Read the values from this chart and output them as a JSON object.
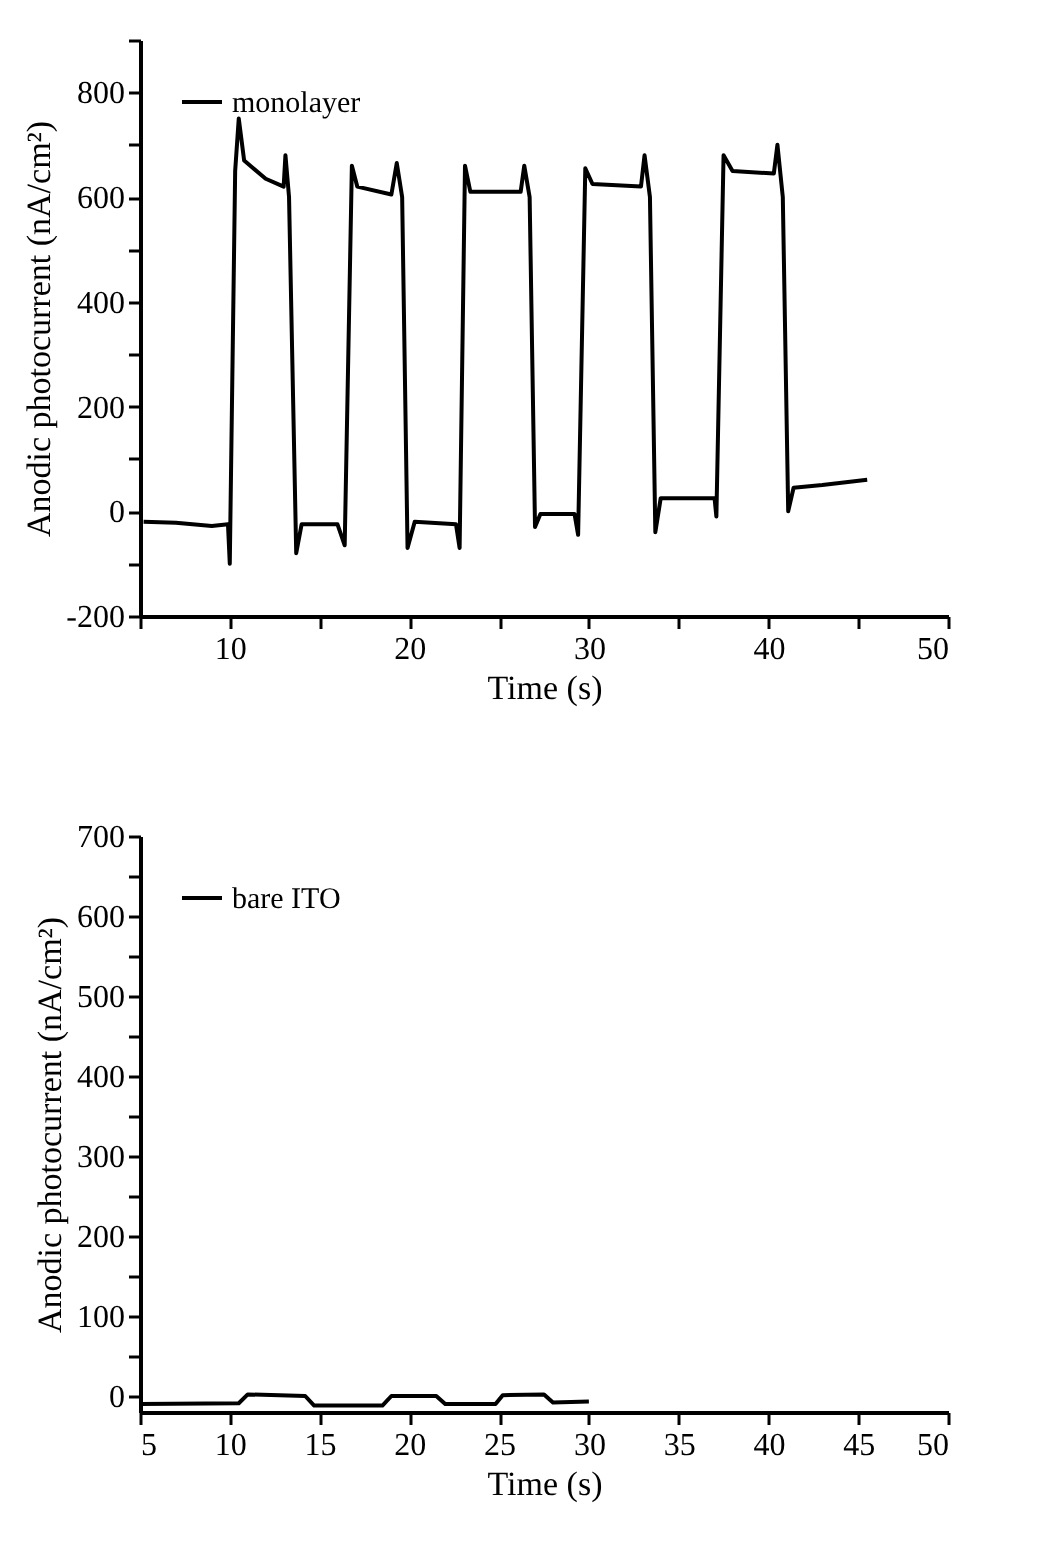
{
  "chart_data": [
    {
      "type": "line",
      "xlabel": "Time (s)",
      "ylabel": "Anodic photocurrent (nA/cm²)",
      "xlim": [
        5,
        50
      ],
      "ylim": [
        -200,
        900
      ],
      "xticks": [
        {
          "value": 5,
          "label": null
        },
        10,
        {
          "value": 15,
          "label": null
        },
        20,
        {
          "value": 25,
          "label": null
        },
        30,
        {
          "value": 35,
          "label": null
        },
        40,
        {
          "value": 45,
          "label": null
        },
        50
      ],
      "yticks": [
        -200,
        {
          "value": -100,
          "label": null
        },
        0,
        {
          "value": 100,
          "label": null
        },
        200,
        {
          "value": 300,
          "label": null
        },
        400,
        {
          "value": 500,
          "label": null
        },
        600,
        {
          "value": 700,
          "label": null
        },
        800,
        {
          "value": 900,
          "label": null
        }
      ],
      "grid": false,
      "legend": "top left",
      "marker": "none",
      "line_style": "solid",
      "series": [
        {
          "name": "monolayer",
          "color": "#000000",
          "x": [
            5.2,
            7,
            9,
            9.9,
            10.0,
            10.3,
            10.5,
            10.8,
            12,
            13,
            13.1,
            13.3,
            13.7,
            14,
            16,
            16.4,
            16.8,
            17.1,
            19,
            19.3,
            19.6,
            19.9,
            20.3,
            22.6,
            22.8,
            23.1,
            23.4,
            26.2,
            26.4,
            26.7,
            27,
            27.3,
            29.2,
            29.4,
            29.8,
            30.2,
            32.9,
            33.1,
            33.4,
            33.7,
            34,
            37,
            37.1,
            37.5,
            38,
            40.3,
            40.5,
            40.8,
            41.1,
            41.4,
            43,
            45.5
          ],
          "values": [
            -20,
            -22,
            -28,
            -25,
            -100,
            650,
            750,
            670,
            635,
            620,
            680,
            600,
            -80,
            -25,
            -25,
            -65,
            660,
            620,
            605,
            665,
            600,
            -70,
            -20,
            -25,
            -70,
            660,
            610,
            610,
            660,
            600,
            -30,
            -5,
            -5,
            -45,
            655,
            625,
            620,
            680,
            600,
            -40,
            25,
            25,
            -10,
            680,
            650,
            645,
            700,
            600,
            0,
            45,
            50,
            60
          ]
        }
      ]
    },
    {
      "type": "line",
      "xlabel": "Time (s)",
      "ylabel": "Anodic photocurrent (nA/cm²)",
      "xlim": [
        5,
        50
      ],
      "ylim": [
        -20,
        700
      ],
      "xticks": [
        5,
        10,
        15,
        20,
        25,
        30,
        35,
        40,
        45,
        50
      ],
      "yticks": [
        0,
        {
          "value": 50,
          "label": null
        },
        100,
        {
          "value": 150,
          "label": null
        },
        200,
        {
          "value": 250,
          "label": null
        },
        300,
        {
          "value": 350,
          "label": null
        },
        400,
        {
          "value": 450,
          "label": null
        },
        500,
        {
          "value": 550,
          "label": null
        },
        600,
        {
          "value": 650,
          "label": null
        },
        700
      ],
      "grid": false,
      "legend": "top left",
      "marker": "none",
      "line_style": "solid",
      "series": [
        {
          "name": "bare ITO",
          "color": "#000000",
          "x": [
            5,
            10.5,
            11,
            14.2,
            14.7,
            18.5,
            19,
            21.5,
            22,
            24.8,
            25.2,
            27.5,
            28,
            30
          ],
          "values": [
            -10,
            -9,
            2,
            0,
            -12,
            -12,
            0,
            0,
            -10,
            -10,
            1,
            2,
            -8,
            -7
          ]
        }
      ]
    }
  ]
}
